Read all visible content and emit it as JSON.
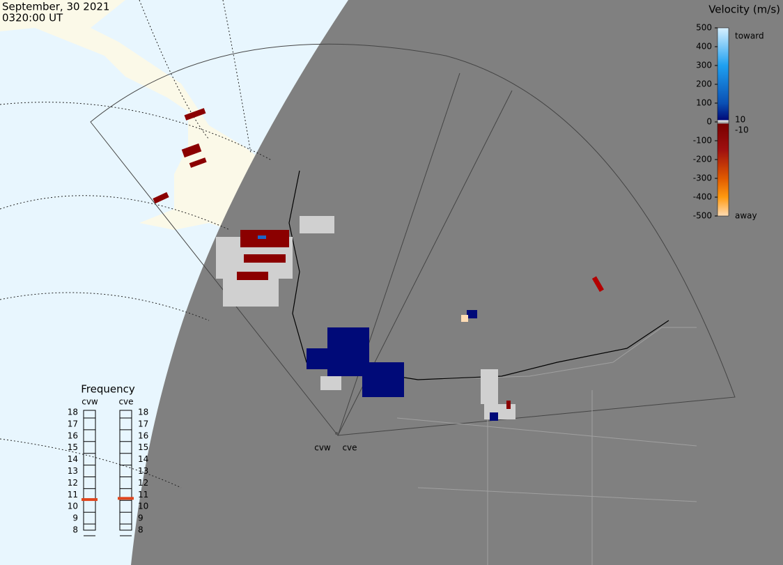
{
  "header": {
    "date": "September, 30 2021",
    "time": "0320:00 UT"
  },
  "velocity_scale": {
    "title": "Velocity (m/s)",
    "ticks": [
      500,
      400,
      300,
      200,
      100,
      0,
      -100,
      -200,
      -300,
      -400,
      -500
    ],
    "inner_ticks": [
      10,
      -10
    ],
    "toward": "toward",
    "away": "away"
  },
  "frequency": {
    "title": "Frequency",
    "ticks": [
      18,
      17,
      16,
      15,
      14,
      13,
      12,
      11,
      10,
      9,
      8
    ],
    "radars": [
      {
        "name": "cvw",
        "value": 10.6
      },
      {
        "name": "cve",
        "value": 10.7
      }
    ]
  },
  "radar_sites": [
    {
      "label": "cvw"
    },
    {
      "label": "cve"
    }
  ]
}
